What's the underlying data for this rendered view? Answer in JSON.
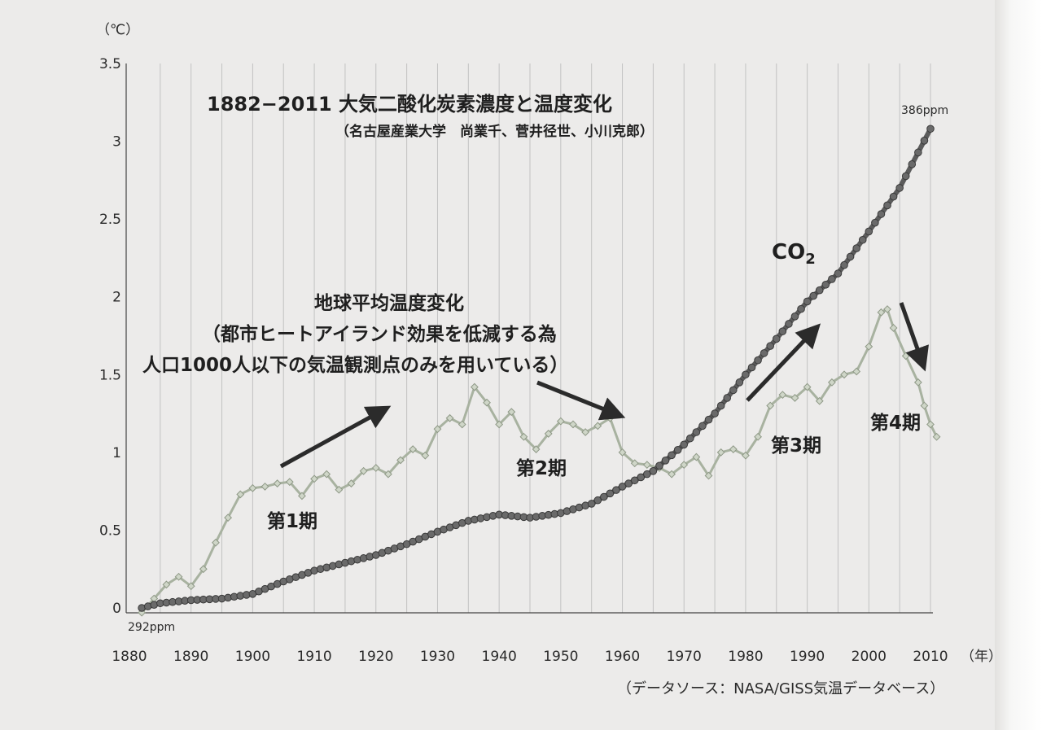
{
  "chart_data": {
    "type": "line",
    "title": "1882−2011 大気二酸化炭素濃度と温度変化",
    "subtitle": "（名古屋産業大学　尚業千、菅井径世、小川克郎）",
    "ylabel": "（℃）",
    "xlabel": "（年）",
    "source": "（データソース：NASA/GISS気温データベース）",
    "xlim": [
      1880,
      2010
    ],
    "ylim": [
      0,
      3.5
    ],
    "x_ticks": [
      "1880",
      "1890",
      "1900",
      "1910",
      "1920",
      "1930",
      "1940",
      "1950",
      "1960",
      "1970",
      "1980",
      "1990",
      "2000",
      "2010"
    ],
    "y_ticks": [
      "0",
      "0.5",
      "1",
      "1.5",
      "2",
      "2.5",
      "3",
      "3.5"
    ],
    "grid": "vertical",
    "series": [
      {
        "name": "CO2",
        "label": "CO",
        "label_sub": "2",
        "color": "#5c5c5c",
        "start_label": "292ppm",
        "end_label": "386ppm",
        "x": [
          1882,
          1885,
          1890,
          1895,
          1900,
          1905,
          1910,
          1915,
          1920,
          1925,
          1930,
          1935,
          1940,
          1945,
          1950,
          1955,
          1960,
          1965,
          1970,
          1975,
          1980,
          1985,
          1990,
          1995,
          2000,
          2005,
          2010
        ],
        "y": [
          0.0,
          0.03,
          0.05,
          0.06,
          0.09,
          0.17,
          0.24,
          0.29,
          0.34,
          0.41,
          0.49,
          0.56,
          0.6,
          0.58,
          0.61,
          0.67,
          0.78,
          0.88,
          1.05,
          1.25,
          1.5,
          1.73,
          1.97,
          2.15,
          2.42,
          2.7,
          3.08
        ]
      },
      {
        "name": "地球平均温度変化",
        "color": "#a8b2a0",
        "x": [
          1882,
          1884,
          1886,
          1888,
          1890,
          1892,
          1894,
          1896,
          1898,
          1900,
          1902,
          1904,
          1906,
          1908,
          1910,
          1912,
          1914,
          1916,
          1918,
          1920,
          1922,
          1924,
          1926,
          1928,
          1930,
          1932,
          1934,
          1936,
          1938,
          1940,
          1942,
          1944,
          1946,
          1948,
          1950,
          1952,
          1954,
          1956,
          1958,
          1960,
          1962,
          1964,
          1966,
          1968,
          1970,
          1972,
          1974,
          1976,
          1978,
          1980,
          1982,
          1984,
          1986,
          1988,
          1990,
          1992,
          1994,
          1996,
          1998,
          2000,
          2002,
          2003,
          2004,
          2006,
          2008,
          2009,
          2010,
          2011
        ],
        "y": [
          -0.03,
          0.06,
          0.15,
          0.2,
          0.14,
          0.25,
          0.42,
          0.58,
          0.73,
          0.77,
          0.78,
          0.8,
          0.81,
          0.72,
          0.83,
          0.86,
          0.76,
          0.8,
          0.88,
          0.9,
          0.86,
          0.95,
          1.02,
          0.98,
          1.15,
          1.22,
          1.18,
          1.42,
          1.32,
          1.18,
          1.26,
          1.1,
          1.02,
          1.12,
          1.2,
          1.18,
          1.13,
          1.17,
          1.22,
          1.0,
          0.93,
          0.92,
          0.9,
          0.86,
          0.92,
          0.97,
          0.85,
          1.0,
          1.02,
          0.98,
          1.1,
          1.3,
          1.37,
          1.35,
          1.42,
          1.33,
          1.45,
          1.5,
          1.52,
          1.68,
          1.9,
          1.92,
          1.8,
          1.62,
          1.45,
          1.3,
          1.18,
          1.1
        ]
      }
    ],
    "annotations": {
      "temp_title": "地球平均温度変化",
      "temp_note1": "（都市ヒートアイランド効果を低減する為",
      "temp_note2": "人口1000人以下の気温観測点のみを用いている）",
      "period1": "第1期",
      "period2": "第2期",
      "period3": "第3期",
      "period4": "第4期"
    }
  }
}
